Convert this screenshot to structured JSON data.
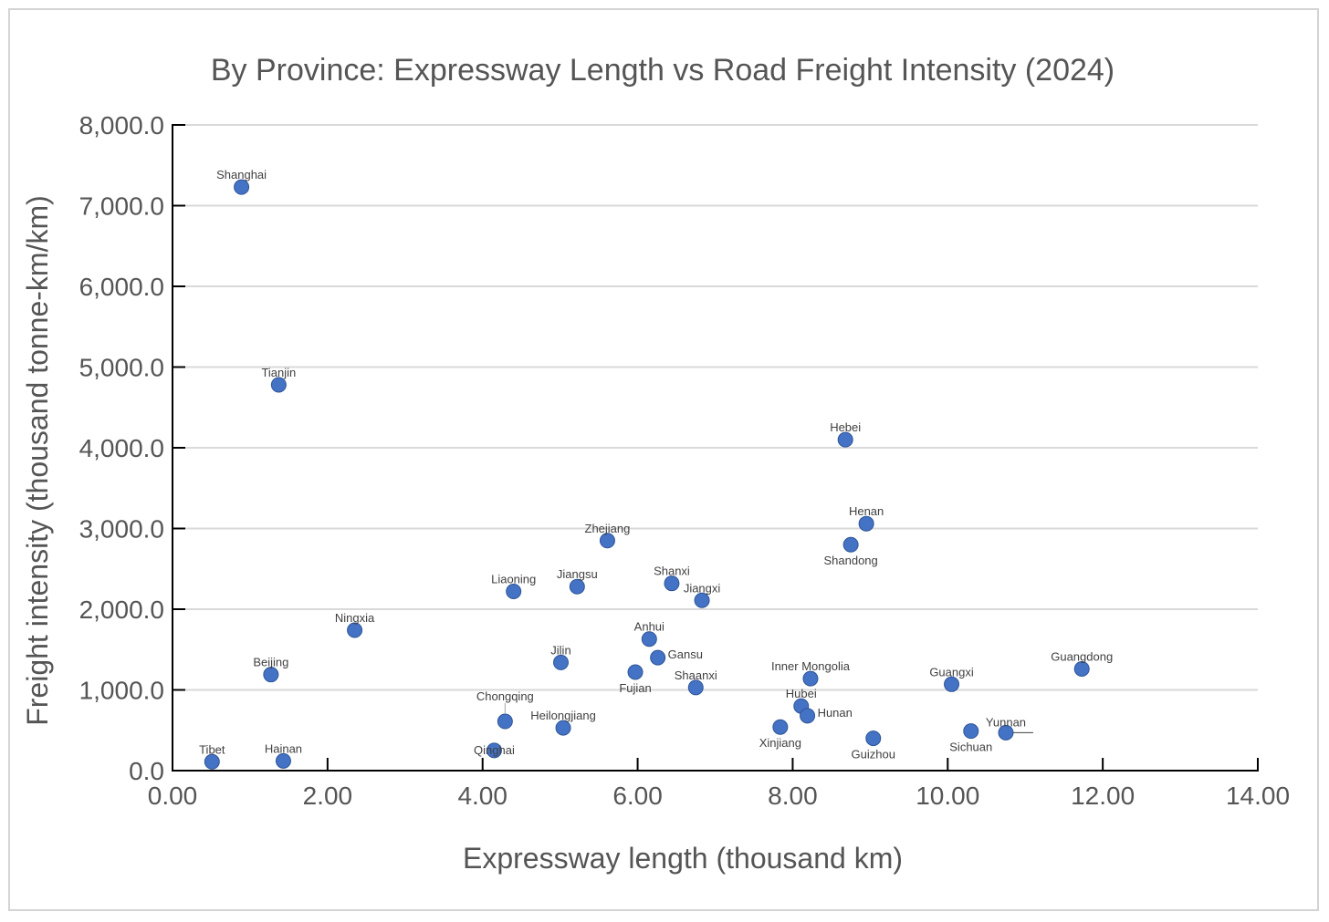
{
  "chart_data": {
    "type": "scatter",
    "title": "By Province: Expressway Length vs Road Freight Intensity (2024)",
    "xlabel": "Expressway length (thousand km)",
    "ylabel": "Freight intensity (thousand tonne-km/km)",
    "xlim": [
      0,
      14
    ],
    "ylim": [
      0,
      8000
    ],
    "x_ticks": [
      "0.00",
      "2.00",
      "4.00",
      "6.00",
      "8.00",
      "10.00",
      "12.00",
      "14.00"
    ],
    "y_ticks": [
      "0.0",
      "1,000.0",
      "2,000.0",
      "3,000.0",
      "4,000.0",
      "5,000.0",
      "6,000.0",
      "7,000.0",
      "8,000.0"
    ],
    "grid": "horizontal",
    "legend": "none",
    "color": "#4472c4",
    "points": [
      {
        "label": "Shanghai",
        "x": 0.89,
        "y": 7230,
        "label_pos": "above"
      },
      {
        "label": "Tianjin",
        "x": 1.37,
        "y": 4780,
        "label_pos": "above"
      },
      {
        "label": "Hebei",
        "x": 8.68,
        "y": 4100,
        "label_pos": "above"
      },
      {
        "label": "Henan",
        "x": 8.95,
        "y": 3060,
        "label_pos": "above"
      },
      {
        "label": "Shandong",
        "x": 8.75,
        "y": 2800,
        "label_pos": "below"
      },
      {
        "label": "Zhejiang",
        "x": 5.61,
        "y": 2850,
        "label_pos": "above"
      },
      {
        "label": "Shanxi",
        "x": 6.44,
        "y": 2320,
        "label_pos": "above"
      },
      {
        "label": "Jiangsu",
        "x": 5.22,
        "y": 2280,
        "label_pos": "above"
      },
      {
        "label": "Liaoning",
        "x": 4.4,
        "y": 2220,
        "label_pos": "above"
      },
      {
        "label": "Jiangxi",
        "x": 6.83,
        "y": 2110,
        "label_pos": "above"
      },
      {
        "label": "Ningxia",
        "x": 2.35,
        "y": 1740,
        "label_pos": "above"
      },
      {
        "label": "Anhui",
        "x": 6.15,
        "y": 1630,
        "label_pos": "above"
      },
      {
        "label": "Gansu",
        "x": 6.26,
        "y": 1400,
        "label_pos": "right"
      },
      {
        "label": "Jilin",
        "x": 5.01,
        "y": 1340,
        "label_pos": "above"
      },
      {
        "label": "Fujian",
        "x": 5.97,
        "y": 1220,
        "label_pos": "below-left"
      },
      {
        "label": "Beijing",
        "x": 1.27,
        "y": 1190,
        "label_pos": "above"
      },
      {
        "label": "Guangdong",
        "x": 11.73,
        "y": 1260,
        "label_pos": "above"
      },
      {
        "label": "Inner Mongolia",
        "x": 8.23,
        "y": 1140,
        "label_pos": "above"
      },
      {
        "label": "Guangxi",
        "x": 10.05,
        "y": 1070,
        "label_pos": "above"
      },
      {
        "label": "Shaanxi",
        "x": 6.75,
        "y": 1030,
        "label_pos": "above"
      },
      {
        "label": "Hubei",
        "x": 8.11,
        "y": 800,
        "label_pos": "above"
      },
      {
        "label": "Hunan",
        "x": 8.19,
        "y": 680,
        "label_pos": "right"
      },
      {
        "label": "Chongqing",
        "x": 4.29,
        "y": 610,
        "label_pos": "above-leader"
      },
      {
        "label": "Heilongjiang",
        "x": 5.04,
        "y": 530,
        "label_pos": "above"
      },
      {
        "label": "Xinjiang",
        "x": 7.84,
        "y": 540,
        "label_pos": "below"
      },
      {
        "label": "Yunnan",
        "x": 10.75,
        "y": 470,
        "label_pos": "above-leader-right"
      },
      {
        "label": "Sichuan",
        "x": 10.3,
        "y": 490,
        "label_pos": "below"
      },
      {
        "label": "Guizhou",
        "x": 9.04,
        "y": 400,
        "label_pos": "below"
      },
      {
        "label": "Qinghai",
        "x": 4.15,
        "y": 250,
        "label_pos": "right-above"
      },
      {
        "label": "Tibet",
        "x": 0.51,
        "y": 110,
        "label_pos": "above"
      },
      {
        "label": "Hainan",
        "x": 1.43,
        "y": 120,
        "label_pos": "above"
      }
    ]
  }
}
